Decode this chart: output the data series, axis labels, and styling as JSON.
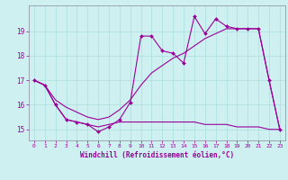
{
  "xlabel": "Windchill (Refroidissement éolien,°C)",
  "background_color": "#cff0f0",
  "line_color": "#990099",
  "grid_color": "#aadddd",
  "hours": [
    0,
    1,
    2,
    3,
    4,
    5,
    6,
    7,
    8,
    9,
    10,
    11,
    12,
    13,
    14,
    15,
    16,
    17,
    18,
    19,
    20,
    21,
    22,
    23
  ],
  "s1": [
    17.0,
    16.8,
    16.0,
    15.4,
    15.3,
    15.2,
    14.9,
    15.1,
    15.4,
    16.1,
    18.8,
    18.8,
    18.2,
    18.1,
    17.7,
    19.6,
    18.9,
    19.5,
    19.2,
    19.1,
    19.1,
    19.1,
    17.0,
    15.0
  ],
  "s2": [
    17.0,
    16.8,
    16.2,
    15.9,
    15.7,
    15.5,
    15.4,
    15.5,
    15.8,
    16.2,
    16.8,
    17.3,
    17.6,
    17.9,
    18.1,
    18.4,
    18.7,
    18.9,
    19.1,
    19.1,
    19.1,
    19.1,
    17.0,
    15.0
  ],
  "s3": [
    17.0,
    16.8,
    16.0,
    15.4,
    15.3,
    15.2,
    15.1,
    15.2,
    15.3,
    15.3,
    15.3,
    15.3,
    15.3,
    15.3,
    15.3,
    15.3,
    15.2,
    15.2,
    15.2,
    15.1,
    15.1,
    15.1,
    15.0,
    15.0
  ],
  "ylim": [
    14.55,
    20.05
  ],
  "yticks": [
    15,
    16,
    17,
    18,
    19
  ],
  "xticks": [
    0,
    1,
    2,
    3,
    4,
    5,
    6,
    7,
    8,
    9,
    10,
    11,
    12,
    13,
    14,
    15,
    16,
    17,
    18,
    19,
    20,
    21,
    22,
    23
  ]
}
